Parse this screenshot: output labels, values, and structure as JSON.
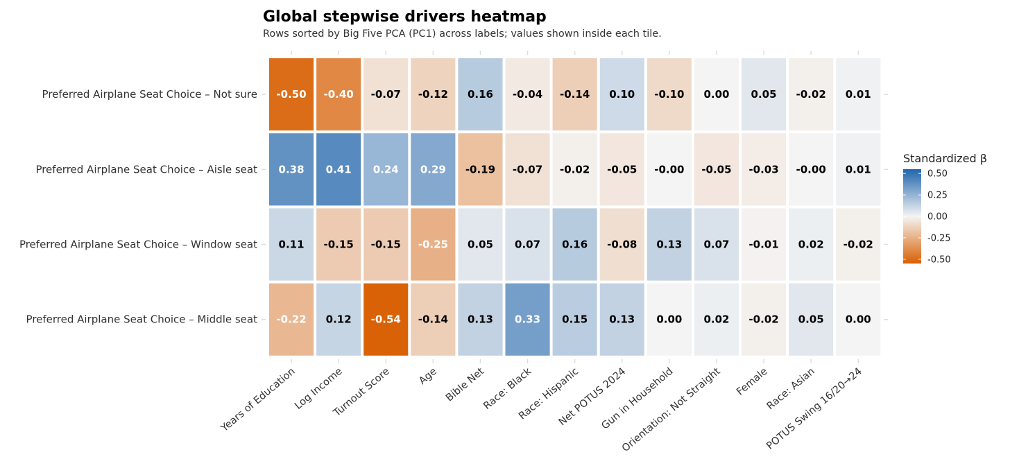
{
  "chart_data": {
    "type": "heatmap",
    "title": "Global stepwise drivers heatmap",
    "subtitle": "Rows sorted by Big Five PCA (PC1) across labels; values shown inside each tile.",
    "rows": [
      "Preferred Airplane Seat Choice – Not sure",
      "Preferred Airplane Seat Choice – Aisle seat",
      "Preferred Airplane Seat Choice – Window seat",
      "Preferred Airplane Seat Choice – Middle seat"
    ],
    "columns": [
      "Years of Education",
      "Log Income",
      "Turnout Score",
      "Age",
      "Bible Net",
      "Race: Black",
      "Race: Hispanic",
      "Net POTUS 2024",
      "Gun in Household",
      "Orientation: Not Straight",
      "Female",
      "Race: Asian",
      "POTUS Swing 16/20→24"
    ],
    "values": [
      [
        -0.5,
        -0.4,
        -0.07,
        -0.12,
        0.16,
        -0.04,
        -0.14,
        0.1,
        -0.1,
        0.0,
        0.05,
        -0.02,
        0.01
      ],
      [
        0.38,
        0.41,
        0.24,
        0.29,
        -0.19,
        -0.07,
        -0.02,
        -0.05,
        -0.001,
        -0.05,
        -0.03,
        -0.001,
        0.01
      ],
      [
        0.11,
        -0.15,
        -0.15,
        -0.25,
        0.05,
        0.07,
        0.16,
        -0.08,
        0.13,
        0.07,
        -0.01,
        0.02,
        -0.02
      ],
      [
        -0.22,
        0.12,
        -0.54,
        -0.14,
        0.13,
        0.33,
        0.15,
        0.13,
        0.0,
        0.02,
        -0.02,
        0.05,
        0.0
      ]
    ],
    "labels": [
      [
        "-0.50",
        "-0.40",
        "-0.07",
        "-0.12",
        "0.16",
        "-0.04",
        "-0.14",
        "0.10",
        "-0.10",
        "0.00",
        "0.05",
        "-0.02",
        "0.01"
      ],
      [
        "0.38",
        "0.41",
        "0.24",
        "0.29",
        "-0.19",
        "-0.07",
        "-0.02",
        "-0.05",
        "-0.00",
        "-0.05",
        "-0.03",
        "-0.00",
        "0.01"
      ],
      [
        "0.11",
        "-0.15",
        "-0.15",
        "-0.25",
        "0.05",
        "0.07",
        "0.16",
        "-0.08",
        "0.13",
        "0.07",
        "-0.01",
        "0.02",
        "-0.02"
      ],
      [
        "-0.22",
        "0.12",
        "-0.54",
        "-0.14",
        "0.13",
        "0.33",
        "0.15",
        "0.13",
        "0.00",
        "0.02",
        "-0.02",
        "0.05",
        "0.00"
      ]
    ],
    "white_text_threshold": 0.2,
    "legend": {
      "title": "Standardized β",
      "placement": "right",
      "ticks": [
        0.5,
        0.25,
        0.0,
        -0.25,
        -0.5
      ],
      "tick_labels": [
        "0.50",
        "0.25",
        "0.00",
        "-0.25",
        "-0.50"
      ],
      "range": [
        -0.55,
        0.55
      ]
    },
    "colors": {
      "high": "#2166ac",
      "mid": "#f4f4f4",
      "low": "#d95f02",
      "dark_text": "#000000",
      "light_text": "#ffffff"
    }
  }
}
